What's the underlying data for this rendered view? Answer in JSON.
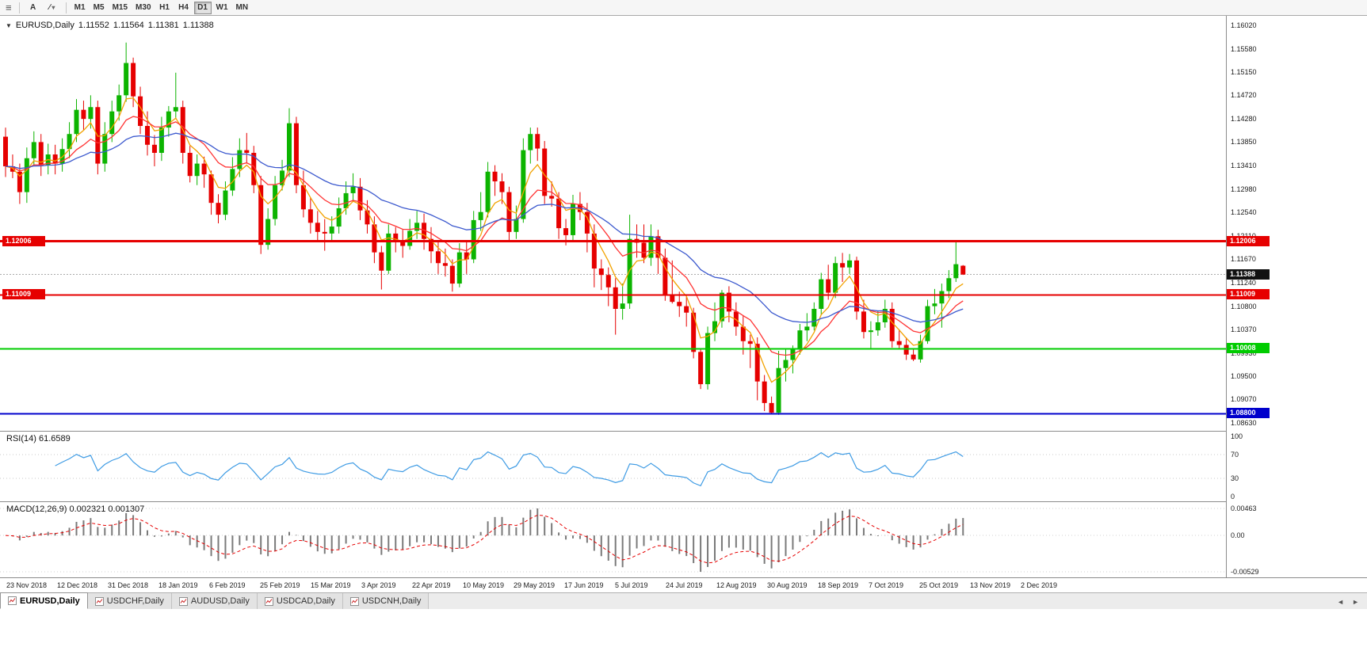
{
  "icons": {
    "hamburger": "≡",
    "quote_toggle": "▼",
    "caret": "▾",
    "slash": "∕",
    "tab_scroll_left": "◄",
    "tab_scroll_right": "►"
  },
  "toolbar": {
    "text_tool_label": "A",
    "timeframes": [
      "M1",
      "M5",
      "M15",
      "M30",
      "H1",
      "H4",
      "D1",
      "W1",
      "MN"
    ],
    "active_timeframe": "D1"
  },
  "time_axis": [
    "23 Nov 2018",
    "12 Dec 2018",
    "31 Dec 2018",
    "18 Jan 2019",
    "6 Feb 2019",
    "25 Feb 2019",
    "15 Mar 2019",
    "3 Apr 2019",
    "22 Apr 2019",
    "10 May 2019",
    "29 May 2019",
    "17 Jun 2019",
    "5 Jul 2019",
    "24 Jul 2019",
    "12 Aug 2019",
    "30 Aug 2019",
    "18 Sep 2019",
    "7 Oct 2019",
    "25 Oct 2019",
    "13 Nov 2019",
    "2 Dec 2019"
  ],
  "tabs": {
    "items": [
      "EURUSD,Daily",
      "USDCHF,Daily",
      "AUDUSD,Daily",
      "USDCAD,Daily",
      "USDCNH,Daily"
    ],
    "active": "EURUSD,Daily"
  },
  "chart_data": {
    "type": "candlestick",
    "symbol": "EURUSD",
    "timeframe": "Daily",
    "quote": {
      "symbol": "EURUSD,Daily",
      "open": "1.11552",
      "high": "1.11564",
      "low": "1.11381",
      "close": "1.11388"
    },
    "current_price": 1.11388,
    "up_color": "#0CB400",
    "down_color": "#E60000",
    "ylim": [
      1.0855,
      1.1625
    ],
    "y_ticks": [
      "1.16020",
      "1.15580",
      "1.15150",
      "1.14720",
      "1.14280",
      "1.13850",
      "1.13410",
      "1.12980",
      "1.12540",
      "1.12110",
      "1.11670",
      "1.11240",
      "1.10800",
      "1.10370",
      "1.09930",
      "1.09500",
      "1.09070",
      "1.08630"
    ],
    "hlines": [
      {
        "price": 1.12006,
        "label": "1.12006",
        "color": "#E60000",
        "width": 3,
        "left_tag": true
      },
      {
        "price": 1.11009,
        "label": "1.11009",
        "color": "#E60000",
        "width": 2,
        "left_tag": true
      },
      {
        "price": 1.10008,
        "label": "1.10008",
        "color": "#00CC00",
        "width": 2,
        "left_tag": false
      },
      {
        "price": 1.088,
        "label": "1.08800",
        "color": "#0000CC",
        "width": 2,
        "left_tag": false
      }
    ],
    "overlays": {
      "moving_averages": [
        {
          "name": "ma-fast",
          "period": 5,
          "color": "#F2A200"
        },
        {
          "name": "ma-medium",
          "period": 12,
          "color": "#FF3333"
        },
        {
          "name": "ma-slow",
          "period": 28,
          "color": "#3C59CE"
        }
      ]
    },
    "indicators": {
      "rsi": {
        "label": "RSI(14) 61.6589",
        "period": 14,
        "render_period": 7,
        "value": 61.6589,
        "levels": [
          "100",
          "70",
          "30",
          "0"
        ],
        "color": "#3E9BE4"
      },
      "macd": {
        "label": "MACD(12,26,9) 0.002321 0.001307",
        "params": "12,26,9",
        "main_value": 0.002321,
        "signal_value": 0.001307,
        "axis": [
          "0.00463",
          "0.00",
          "-0.00529"
        ],
        "render_periods": [
          6,
          13,
          5
        ],
        "histogram_color": "#7A7A7A",
        "signal_color": "#E60000"
      }
    },
    "candles": [
      [
        1.1395,
        1.1412,
        1.132,
        1.134
      ],
      [
        1.134,
        1.1362,
        1.1318,
        1.133
      ],
      [
        1.133,
        1.1345,
        1.127,
        1.1292
      ],
      [
        1.1292,
        1.1375,
        1.1272,
        1.1355
      ],
      [
        1.1355,
        1.1405,
        1.134,
        1.1385
      ],
      [
        1.1385,
        1.14,
        1.1322,
        1.1342
      ],
      [
        1.1342,
        1.1382,
        1.1325,
        1.1362
      ],
      [
        1.1362,
        1.138,
        1.1325,
        1.1345
      ],
      [
        1.1345,
        1.1392,
        1.133,
        1.1372
      ],
      [
        1.1372,
        1.1422,
        1.1355,
        1.14
      ],
      [
        1.14,
        1.1465,
        1.1385,
        1.1445
      ],
      [
        1.1445,
        1.1462,
        1.1408,
        1.1428
      ],
      [
        1.1428,
        1.1472,
        1.141,
        1.145
      ],
      [
        1.145,
        1.1462,
        1.1325,
        1.1345
      ],
      [
        1.1345,
        1.1422,
        1.133,
        1.14
      ],
      [
        1.14,
        1.1462,
        1.1385,
        1.1442
      ],
      [
        1.1442,
        1.1492,
        1.1425,
        1.1472
      ],
      [
        1.1472,
        1.157,
        1.146,
        1.1532
      ],
      [
        1.1532,
        1.1542,
        1.145,
        1.147
      ],
      [
        1.147,
        1.1488,
        1.14,
        1.1415
      ],
      [
        1.1415,
        1.1442,
        1.136,
        1.138
      ],
      [
        1.138,
        1.1398,
        1.134,
        1.1365
      ],
      [
        1.1365,
        1.1432,
        1.135,
        1.1412
      ],
      [
        1.1412,
        1.1452,
        1.1395,
        1.1442
      ],
      [
        1.1442,
        1.1514,
        1.143,
        1.145
      ],
      [
        1.145,
        1.1462,
        1.1345,
        1.1365
      ],
      [
        1.1365,
        1.1378,
        1.131,
        1.1322
      ],
      [
        1.1322,
        1.1362,
        1.1305,
        1.1345
      ],
      [
        1.1345,
        1.1358,
        1.13,
        1.1325
      ],
      [
        1.1325,
        1.1332,
        1.125,
        1.1272
      ],
      [
        1.1272,
        1.1288,
        1.1234,
        1.125
      ],
      [
        1.125,
        1.1312,
        1.124,
        1.1295
      ],
      [
        1.1295,
        1.1357,
        1.1285,
        1.1335
      ],
      [
        1.1335,
        1.1392,
        1.132,
        1.137
      ],
      [
        1.137,
        1.1402,
        1.1345,
        1.1365
      ],
      [
        1.1365,
        1.1378,
        1.129,
        1.1305
      ],
      [
        1.1305,
        1.1322,
        1.1177,
        1.1194
      ],
      [
        1.1194,
        1.1262,
        1.1185,
        1.1242
      ],
      [
        1.1242,
        1.1322,
        1.123,
        1.1305
      ],
      [
        1.1305,
        1.1352,
        1.1295,
        1.1332
      ],
      [
        1.1332,
        1.1448,
        1.132,
        1.142
      ],
      [
        1.142,
        1.1432,
        1.129,
        1.1305
      ],
      [
        1.1305,
        1.1332,
        1.1245,
        1.126
      ],
      [
        1.126,
        1.1282,
        1.1215,
        1.1235
      ],
      [
        1.1235,
        1.1257,
        1.12,
        1.1218
      ],
      [
        1.1218,
        1.1242,
        1.1183,
        1.1215
      ],
      [
        1.1215,
        1.1247,
        1.12,
        1.1228
      ],
      [
        1.1228,
        1.1282,
        1.1215,
        1.1262
      ],
      [
        1.1262,
        1.1312,
        1.125,
        1.129
      ],
      [
        1.129,
        1.1327,
        1.1275,
        1.1302
      ],
      [
        1.1302,
        1.1318,
        1.124,
        1.1258
      ],
      [
        1.1258,
        1.1277,
        1.1215,
        1.1232
      ],
      [
        1.1232,
        1.1247,
        1.116,
        1.118
      ],
      [
        1.118,
        1.1192,
        1.1111,
        1.1146
      ],
      [
        1.1146,
        1.1232,
        1.114,
        1.1215
      ],
      [
        1.1215,
        1.1227,
        1.118,
        1.12
      ],
      [
        1.12,
        1.1222,
        1.117,
        1.1192
      ],
      [
        1.1192,
        1.1242,
        1.1185,
        1.122
      ],
      [
        1.122,
        1.1257,
        1.1205,
        1.1235
      ],
      [
        1.1235,
        1.1252,
        1.1185,
        1.1205
      ],
      [
        1.1205,
        1.1227,
        1.116,
        1.1182
      ],
      [
        1.1182,
        1.1202,
        1.114,
        1.116
      ],
      [
        1.116,
        1.1187,
        1.1135,
        1.1155
      ],
      [
        1.1155,
        1.1167,
        1.1107,
        1.1122
      ],
      [
        1.1122,
        1.1197,
        1.1115,
        1.118
      ],
      [
        1.118,
        1.1202,
        1.114,
        1.1167
      ],
      [
        1.1167,
        1.1257,
        1.116,
        1.124
      ],
      [
        1.124,
        1.1292,
        1.122,
        1.1255
      ],
      [
        1.1255,
        1.1348,
        1.1245,
        1.133
      ],
      [
        1.133,
        1.1342,
        1.1285,
        1.1312
      ],
      [
        1.1312,
        1.1327,
        1.127,
        1.1292
      ],
      [
        1.1292,
        1.1302,
        1.12,
        1.1218
      ],
      [
        1.1218,
        1.1267,
        1.1205,
        1.1242
      ],
      [
        1.1242,
        1.1392,
        1.1235,
        1.137
      ],
      [
        1.137,
        1.1412,
        1.1345,
        1.14
      ],
      [
        1.14,
        1.1412,
        1.135,
        1.1373
      ],
      [
        1.1373,
        1.1387,
        1.127,
        1.1285
      ],
      [
        1.1285,
        1.1312,
        1.1265,
        1.128
      ],
      [
        1.128,
        1.1292,
        1.1205,
        1.1225
      ],
      [
        1.1225,
        1.1242,
        1.1193,
        1.1212
      ],
      [
        1.1212,
        1.1287,
        1.12,
        1.127
      ],
      [
        1.127,
        1.1292,
        1.124,
        1.1255
      ],
      [
        1.1255,
        1.1272,
        1.118,
        1.1215
      ],
      [
        1.1215,
        1.1232,
        1.1115,
        1.115
      ],
      [
        1.115,
        1.1167,
        1.111,
        1.1138
      ],
      [
        1.1138,
        1.1152,
        1.108,
        1.1115
      ],
      [
        1.1115,
        1.1132,
        1.1027,
        1.1075
      ],
      [
        1.1075,
        1.1122,
        1.1055,
        1.1085
      ],
      [
        1.1085,
        1.125,
        1.1075,
        1.1205
      ],
      [
        1.1205,
        1.1232,
        1.117,
        1.1198
      ],
      [
        1.1198,
        1.1232,
        1.116,
        1.117
      ],
      [
        1.117,
        1.1232,
        1.1155,
        1.121
      ],
      [
        1.121,
        1.1222,
        1.114,
        1.117
      ],
      [
        1.117,
        1.1187,
        1.109,
        1.11
      ],
      [
        1.11,
        1.1165,
        1.1085,
        1.1088
      ],
      [
        1.1088,
        1.1107,
        1.106,
        1.108
      ],
      [
        1.108,
        1.1097,
        1.1042,
        1.1068
      ],
      [
        1.1068,
        1.1077,
        1.0983,
        1.0995
      ],
      [
        1.0995,
        1.1002,
        1.0926,
        1.0935
      ],
      [
        1.0935,
        1.1042,
        1.0925,
        1.103
      ],
      [
        1.103,
        1.1087,
        1.1015,
        1.1052
      ],
      [
        1.1052,
        1.111,
        1.104,
        1.1105
      ],
      [
        1.1105,
        1.1117,
        1.105,
        1.107
      ],
      [
        1.107,
        1.1087,
        1.1025,
        1.1042
      ],
      [
        1.1042,
        1.1062,
        1.099,
        1.1015
      ],
      [
        1.1015,
        1.1027,
        1.0965,
        1.101
      ],
      [
        1.101,
        1.1022,
        1.0905,
        1.094
      ],
      [
        1.094,
        1.0952,
        1.0885,
        1.09
      ],
      [
        1.09,
        1.0912,
        1.0879,
        1.0882
      ],
      [
        1.0882,
        1.0997,
        1.0878,
        1.0965
      ],
      [
        1.0965,
        1.1002,
        1.094,
        1.098
      ],
      [
        1.098,
        1.1007,
        1.0955,
        1.1
      ],
      [
        1.1,
        1.1047,
        1.099,
        1.1035
      ],
      [
        1.1035,
        1.1067,
        1.1015,
        1.1042
      ],
      [
        1.1042,
        1.1087,
        1.1035,
        1.1075
      ],
      [
        1.1075,
        1.1142,
        1.1065,
        1.113
      ],
      [
        1.113,
        1.1157,
        1.1092,
        1.1105
      ],
      [
        1.1105,
        1.1172,
        1.1095,
        1.116
      ],
      [
        1.116,
        1.1179,
        1.1125,
        1.1152
      ],
      [
        1.1152,
        1.1177,
        1.114,
        1.1165
      ],
      [
        1.1165,
        1.1172,
        1.1055,
        1.107
      ],
      [
        1.107,
        1.1092,
        1.102,
        1.1032
      ],
      [
        1.1032,
        1.1052,
        1.1,
        1.1035
      ],
      [
        1.1035,
        1.1072,
        1.1025,
        1.105
      ],
      [
        1.105,
        1.1092,
        1.104,
        1.1075
      ],
      [
        1.1075,
        1.1087,
        1.1003,
        1.1015
      ],
      [
        1.1015,
        1.1037,
        1.1,
        1.1008
      ],
      [
        1.1008,
        1.1022,
        1.098,
        1.099
      ],
      [
        1.099,
        1.1002,
        1.0978,
        1.0981
      ],
      [
        1.0981,
        1.1027,
        1.0975,
        1.1015
      ],
      [
        1.1015,
        1.1092,
        1.101,
        1.108
      ],
      [
        1.108,
        1.1112,
        1.1065,
        1.1085
      ],
      [
        1.1085,
        1.1122,
        1.104,
        1.1108
      ],
      [
        1.1108,
        1.1147,
        1.1095,
        1.1132
      ],
      [
        1.1132,
        1.12006,
        1.1125,
        1.1158
      ],
      [
        1.11552,
        1.11564,
        1.11381,
        1.11388
      ]
    ]
  }
}
